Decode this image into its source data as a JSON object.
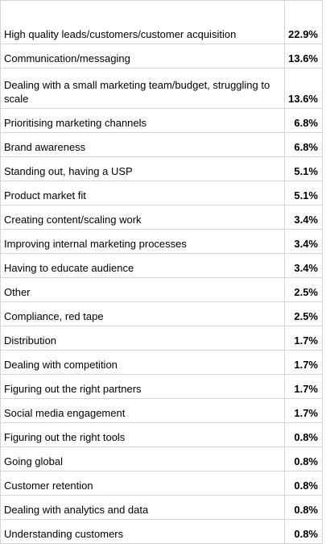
{
  "table": {
    "rows": [
      {
        "label": "High quality leads/customers/customer acquisition",
        "value": "22.9%"
      },
      {
        "label": "Communication/messaging",
        "value": "13.6%"
      },
      {
        "label": "Dealing with a small marketing team/budget, struggling to scale",
        "value": "13.6%"
      },
      {
        "label": "Prioritising marketing channels",
        "value": "6.8%"
      },
      {
        "label": "Brand awareness",
        "value": "6.8%"
      },
      {
        "label": "Standing out, having a USP",
        "value": "5.1%"
      },
      {
        "label": "Product market fit",
        "value": "5.1%"
      },
      {
        "label": "Creating content/scaling work",
        "value": "3.4%"
      },
      {
        "label": "Improving internal marketing processes",
        "value": "3.4%"
      },
      {
        "label": "Having to educate audience",
        "value": "3.4%"
      },
      {
        "label": "Other",
        "value": "2.5%"
      },
      {
        "label": "Compliance, red tape",
        "value": "2.5%"
      },
      {
        "label": "Distribution",
        "value": "1.7%"
      },
      {
        "label": "Dealing with competition",
        "value": "1.7%"
      },
      {
        "label": "Figuring out the right partners",
        "value": "1.7%"
      },
      {
        "label": "Social media engagement",
        "value": "1.7%"
      },
      {
        "label": "Figuring out the right tools",
        "value": "0.8%"
      },
      {
        "label": "Going global",
        "value": "0.8%"
      },
      {
        "label": "Customer retention",
        "value": "0.8%"
      },
      {
        "label": "Dealing with analytics and data",
        "value": "0.8%"
      },
      {
        "label": "Understanding customers",
        "value": "0.8%"
      }
    ]
  }
}
